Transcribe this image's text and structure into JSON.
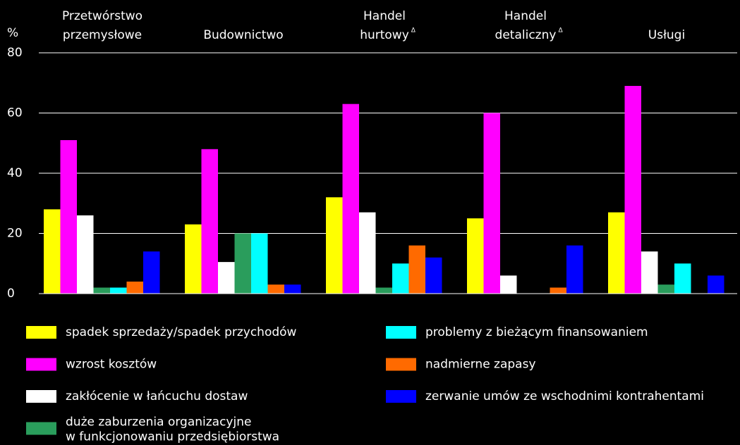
{
  "chart_data": {
    "type": "bar",
    "y_label": "%",
    "categories": [
      [
        "Przetwórstwo",
        "przemysłowe"
      ],
      [
        "Budownictwo"
      ],
      [
        "Handel",
        "hurtowy"
      ],
      [
        "Handel",
        "detaliczny"
      ],
      [
        "Usługi"
      ]
    ],
    "category_marks": [
      null,
      null,
      "Δ",
      "Δ",
      null
    ],
    "series": [
      {
        "name": "spadek sprzedaży/spadek przychodów",
        "color": "#ffff00",
        "values": [
          28,
          23,
          32,
          25,
          27
        ]
      },
      {
        "name": "wzrost kosztów",
        "color": "#ff00ff",
        "values": [
          51,
          48,
          63,
          60,
          69
        ]
      },
      {
        "name": "zakłócenie w łańcuchu dostaw",
        "color": "#ffffff",
        "values": [
          26,
          10.5,
          27,
          6,
          14
        ]
      },
      {
        "name": [
          "duże zaburzenia organizacyjne",
          "w funkcjonowaniu przedsiębiorstwa"
        ],
        "color": "#2a9d5c",
        "values": [
          2,
          20,
          2,
          0,
          3
        ]
      },
      {
        "name": "problemy z bieżącym finansowaniem",
        "color": "#00ffff",
        "values": [
          2,
          20,
          10,
          0,
          10
        ]
      },
      {
        "name": "nadmierne zapasy",
        "color": "#ff6a00",
        "values": [
          4,
          3,
          16,
          2,
          0
        ]
      },
      {
        "name": "zerwanie umów ze wschodnimi kontrahentami",
        "color": "#0000ff",
        "values": [
          14,
          3,
          12,
          16,
          6
        ]
      }
    ],
    "ylim": [
      0,
      80
    ],
    "yticks": [
      0,
      20,
      40,
      60,
      80
    ],
    "grid": true
  }
}
